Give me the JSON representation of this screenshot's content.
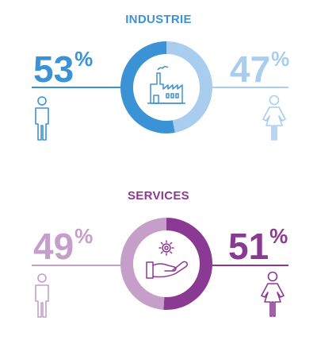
{
  "colors": {
    "industrie_dark": "#3b93d6",
    "industrie_light": "#a8cdee",
    "services_dark": "#8b3a93",
    "services_light": "#c59ec9"
  },
  "chart_data": [
    {
      "type": "pie",
      "title": "INDUSTRIE",
      "center_icon": "factory-icon",
      "values": {
        "men": 53,
        "women": 47
      },
      "labels": {
        "men": "53",
        "women": "47"
      },
      "unit": "%"
    },
    {
      "type": "pie",
      "title": "SERVICES",
      "center_icon": "hand-gear-icon",
      "values": {
        "men": 49,
        "women": 51
      },
      "labels": {
        "men": "49",
        "women": "51"
      },
      "unit": "%"
    }
  ]
}
